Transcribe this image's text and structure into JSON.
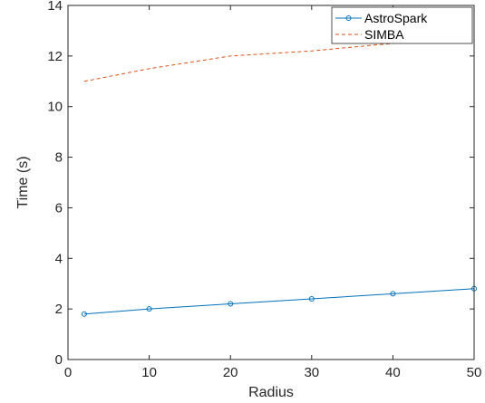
{
  "chart_data": {
    "type": "line",
    "xlabel": "Radius",
    "ylabel": "Time (s)",
    "xlim": [
      0,
      50
    ],
    "ylim": [
      0,
      14
    ],
    "xticks": [
      "0",
      "10",
      "20",
      "30",
      "40",
      "50"
    ],
    "yticks": [
      "0",
      "2",
      "4",
      "6",
      "8",
      "10",
      "12",
      "14"
    ],
    "grid": false,
    "legend_position": "top-right",
    "series": [
      {
        "name": "AstroSpark",
        "color": "#0072BD",
        "line_style": "solid",
        "marker": "circle",
        "x": [
          2,
          10,
          20,
          30,
          40,
          50
        ],
        "y": [
          1.8,
          2.0,
          2.2,
          2.4,
          2.6,
          2.8
        ]
      },
      {
        "name": "SIMBA",
        "color": "#D95319",
        "line_style": "dashed",
        "marker": "none",
        "x": [
          2,
          10,
          20,
          30,
          40,
          50
        ],
        "y": [
          11.0,
          11.5,
          12.0,
          12.2,
          12.5,
          12.8
        ]
      }
    ]
  }
}
